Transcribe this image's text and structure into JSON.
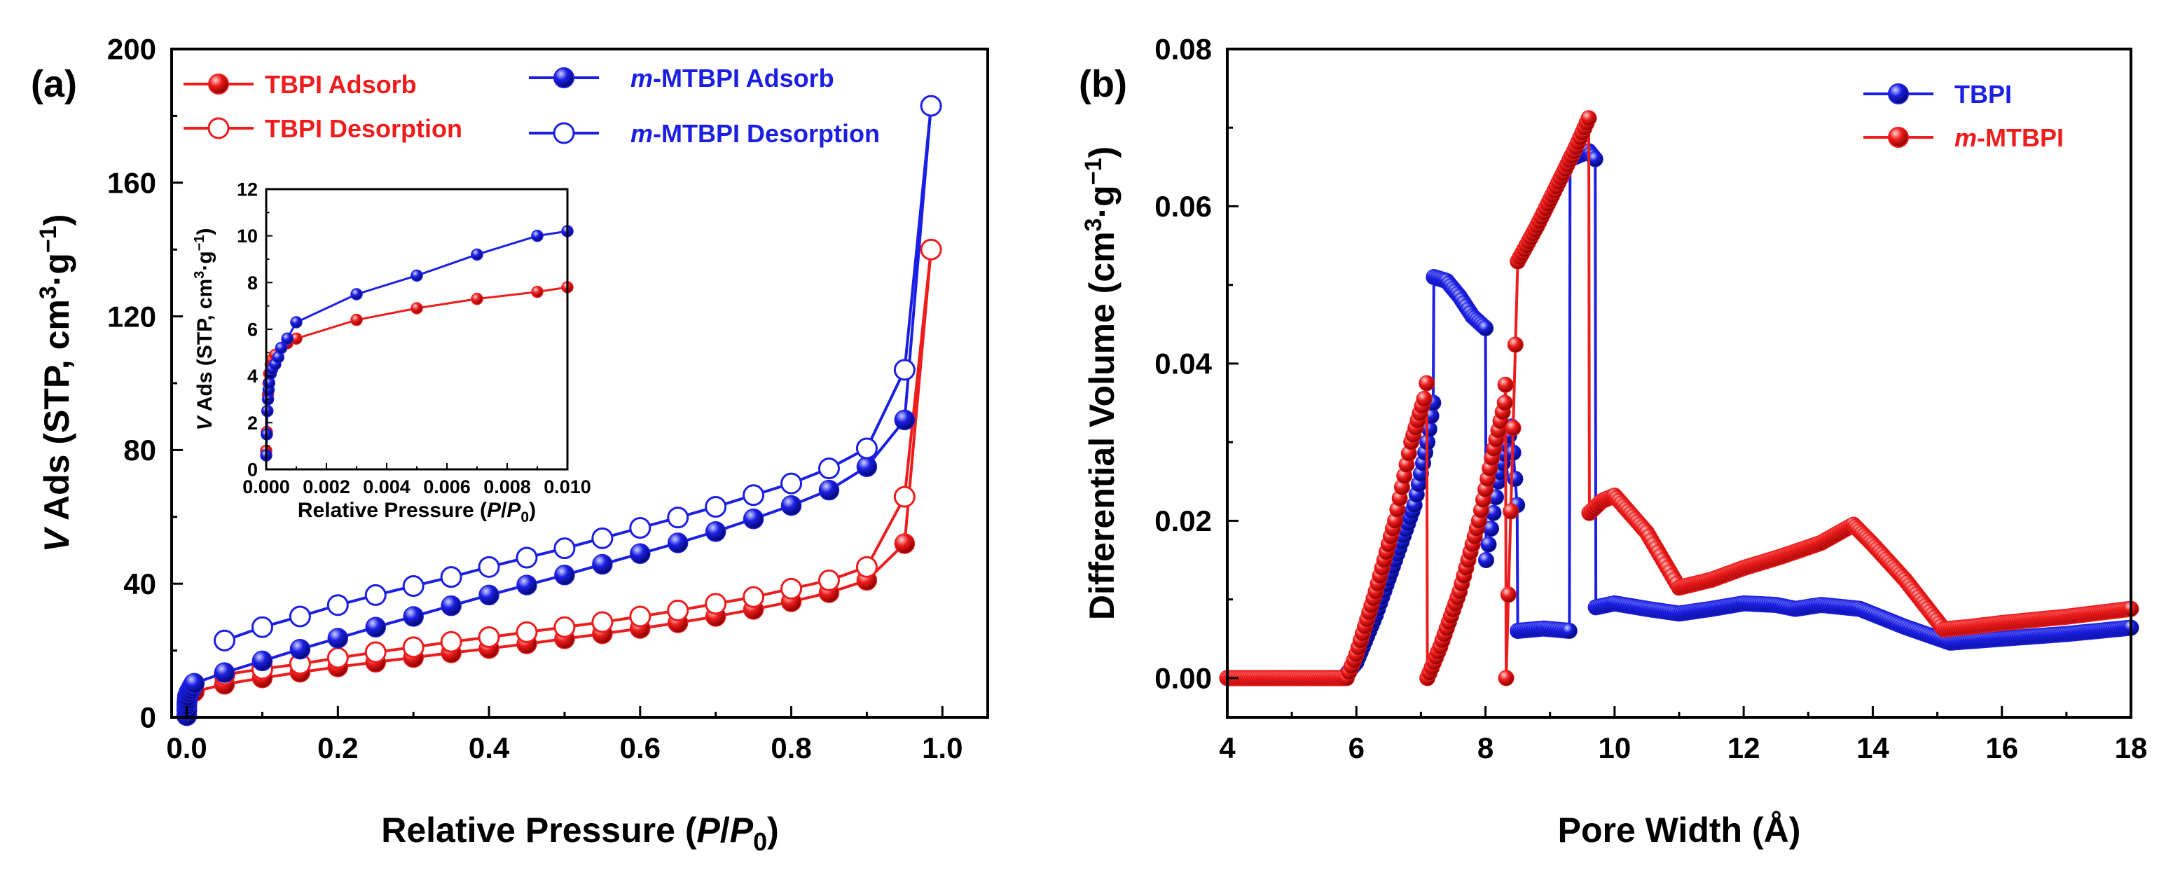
{
  "colors": {
    "red": "#ee1c1c",
    "blue": "#1b1fe4",
    "axis": "#000000"
  },
  "chart_data": [
    {
      "panel": "(a)",
      "type": "line",
      "xlabel": "Relative Pressure (P/P0)",
      "xlabel_parts": {
        "pre": "Relative Pressure (",
        "p": "P",
        "slash": "/",
        "p0": "P",
        "sub": "0",
        "post": ")"
      },
      "ylabel": "V Ads (STP, cm3·g−1)",
      "ylabel_parts": {
        "v": "V",
        "pre": " Ads (STP, cm",
        "sup3": "3",
        "mid": "·g",
        "supm1": "−1",
        "post": ")"
      },
      "xlim": [
        -0.02,
        1.06
      ],
      "ylim": [
        0,
        200
      ],
      "xticks": [
        "0.0",
        "0.2",
        "0.4",
        "0.6",
        "0.8",
        "1.0"
      ],
      "xtick_values": [
        0,
        0.2,
        0.4,
        0.6,
        0.8,
        1.0
      ],
      "yticks": [
        "0",
        "40",
        "80",
        "120",
        "160",
        "200"
      ],
      "ytick_values": [
        0,
        40,
        80,
        120,
        160,
        200
      ],
      "legend": [
        {
          "text": "TBPI Adsorb",
          "prefix": "",
          "color": "red",
          "filled": true
        },
        {
          "text": "TBPI Desorption",
          "prefix": "",
          "color": "red",
          "filled": false
        },
        {
          "text": "-MTBPI Adsorb",
          "prefix": "m",
          "color": "blue",
          "filled": true
        },
        {
          "text": "-MTBPI Desorption",
          "prefix": "m",
          "color": "blue",
          "filled": false
        }
      ],
      "series": [
        {
          "name": "TBPI Adsorb",
          "color": "red",
          "filled": true,
          "x": [
            0.0,
            0.0001,
            0.0002,
            0.0004,
            0.0007,
            0.001,
            0.003,
            0.005,
            0.01,
            0.05,
            0.1,
            0.15,
            0.2,
            0.25,
            0.3,
            0.35,
            0.4,
            0.45,
            0.5,
            0.55,
            0.6,
            0.65,
            0.7,
            0.75,
            0.8,
            0.85,
            0.9,
            0.95,
            0.985
          ],
          "y": [
            0.5,
            2.5,
            4.0,
            4.7,
            5.2,
            5.6,
            6.4,
            6.9,
            7.7,
            9.9,
            11.8,
            13.5,
            15.1,
            16.5,
            17.9,
            19.3,
            20.6,
            22.0,
            23.5,
            25.0,
            26.6,
            28.3,
            30.2,
            32.3,
            34.6,
            37.3,
            41.0,
            52.0,
            140.0
          ]
        },
        {
          "name": "TBPI Desorption",
          "color": "red",
          "filled": false,
          "x": [
            0.985,
            0.95,
            0.9,
            0.85,
            0.8,
            0.75,
            0.7,
            0.65,
            0.6,
            0.55,
            0.5,
            0.45,
            0.4,
            0.35,
            0.3,
            0.25,
            0.2,
            0.15,
            0.1,
            0.05
          ],
          "y": [
            140.0,
            66.0,
            45.0,
            41.0,
            38.5,
            36.0,
            34.0,
            32.0,
            30.2,
            28.5,
            27.0,
            25.5,
            24.0,
            22.6,
            21.0,
            19.5,
            17.8,
            16.0,
            14.5,
            12.8
          ]
        },
        {
          "name": "m-MTBPI Adsorb",
          "color": "blue",
          "filled": true,
          "x": [
            0.0,
            0.0001,
            0.0002,
            0.0004,
            0.0007,
            0.001,
            0.003,
            0.005,
            0.007,
            0.009,
            0.01,
            0.05,
            0.1,
            0.15,
            0.2,
            0.25,
            0.3,
            0.35,
            0.4,
            0.45,
            0.5,
            0.55,
            0.6,
            0.65,
            0.7,
            0.75,
            0.8,
            0.85,
            0.9,
            0.95,
            0.985
          ],
          "y": [
            0.5,
            2.2,
            3.8,
            4.6,
            5.4,
            6.3,
            7.5,
            8.3,
            9.2,
            10.0,
            10.2,
            13.4,
            16.9,
            20.4,
            23.7,
            27.0,
            30.2,
            33.4,
            36.6,
            39.6,
            42.6,
            45.8,
            49.0,
            52.2,
            55.6,
            59.4,
            63.4,
            68.0,
            75.0,
            89.0,
            183.0
          ]
        },
        {
          "name": "m-MTBPI Desorption",
          "color": "blue",
          "filled": false,
          "x": [
            0.985,
            0.95,
            0.9,
            0.85,
            0.8,
            0.75,
            0.7,
            0.65,
            0.6,
            0.55,
            0.5,
            0.45,
            0.4,
            0.35,
            0.3,
            0.25,
            0.2,
            0.15,
            0.1,
            0.05
          ],
          "y": [
            183.0,
            104.0,
            80.5,
            74.5,
            70.0,
            66.5,
            63.0,
            59.8,
            56.7,
            53.6,
            50.6,
            47.8,
            45.0,
            42.0,
            39.3,
            36.6,
            33.6,
            30.2,
            27.0,
            23.0
          ]
        }
      ],
      "inset": {
        "xlabel": "Relative Pressure (P/P0)",
        "xlabel_parts": {
          "pre": "Relative Pressure (",
          "p": "P",
          "slash": "/",
          "p0": "P",
          "sub": "0",
          "post": ")"
        },
        "ylabel_parts": {
          "v": "V",
          "pre": " Ads (STP, cm",
          "sup3": "3",
          "mid": "·g",
          "supm1": "−1",
          "post": ")"
        },
        "xlim": [
          0,
          0.01
        ],
        "ylim": [
          0,
          12
        ],
        "xticks": [
          "0.000",
          "0.002",
          "0.004",
          "0.006",
          "0.008",
          "0.010"
        ],
        "xtick_values": [
          0,
          0.002,
          0.004,
          0.006,
          0.008,
          0.01
        ],
        "yticks": [
          "0",
          "2",
          "4",
          "6",
          "8",
          "10",
          "12"
        ],
        "ytick_values": [
          0,
          2,
          4,
          6,
          8,
          10,
          12
        ],
        "series": [
          {
            "name": "TBPI Adsorb",
            "color": "red",
            "x": [
              0.0,
              2e-05,
              4e-05,
              6e-05,
              8e-05,
              0.0001,
              0.00015,
              0.0002,
              0.0003,
              0.0005,
              0.0007,
              0.001,
              0.003,
              0.005,
              0.007,
              0.009,
              0.01
            ],
            "y": [
              0.8,
              1.6,
              2.5,
              3.2,
              3.7,
              4.1,
              4.5,
              4.7,
              4.9,
              5.2,
              5.4,
              5.6,
              6.4,
              6.9,
              7.3,
              7.6,
              7.8
            ]
          },
          {
            "name": "m-MTBPI Adsorb",
            "color": "blue",
            "x": [
              0.0,
              2e-05,
              4e-05,
              6e-05,
              8e-05,
              0.0001,
              0.00015,
              0.0002,
              0.0003,
              0.0004,
              0.0005,
              0.0007,
              0.001,
              0.003,
              0.005,
              0.007,
              0.009,
              0.01
            ],
            "y": [
              0.6,
              1.5,
              2.5,
              3.0,
              3.4,
              3.7,
              4.1,
              4.3,
              4.5,
              4.8,
              5.2,
              5.6,
              6.3,
              7.5,
              8.3,
              9.2,
              10.0,
              10.2
            ]
          }
        ]
      }
    },
    {
      "panel": "(b)",
      "type": "line",
      "xlabel": "Pore Width (Å)",
      "ylabel": "Differential Volume (cm3·g−1)",
      "ylabel_parts": {
        "pre": "Differential Volume (cm",
        "sup3": "3",
        "mid": "·g",
        "supm1": "−1",
        "post": ")"
      },
      "xlim": [
        4,
        18
      ],
      "ylim": [
        -0.005,
        0.08
      ],
      "xticks": [
        "4",
        "6",
        "8",
        "10",
        "12",
        "14",
        "16",
        "18"
      ],
      "xtick_values": [
        4,
        6,
        8,
        10,
        12,
        14,
        16,
        18
      ],
      "yticks": [
        "0.00",
        "0.02",
        "0.04",
        "0.06",
        "0.08"
      ],
      "ytick_values": [
        0,
        0.02,
        0.04,
        0.06,
        0.08
      ],
      "legend": [
        {
          "text": "TBPI",
          "prefix": "",
          "color": "blue",
          "filled": true
        },
        {
          "text": "-MTBPI",
          "prefix": "m",
          "color": "red",
          "filled": true
        }
      ],
      "series": [
        {
          "name": "TBPI",
          "color": "blue",
          "x": [
            4.0,
            5.8,
            6.0,
            6.3,
            6.6,
            6.9,
            7.1,
            7.19,
            7.2,
            7.4,
            7.6,
            7.8,
            8.0,
            8.01,
            8.2,
            8.4,
            8.49,
            8.5,
            8.9,
            9.3,
            9.31,
            9.6,
            9.7,
            9.71,
            10.0,
            10.5,
            11.0,
            11.5,
            12.0,
            12.5,
            12.8,
            13.2,
            13.8,
            14.5,
            15.2,
            16.0,
            17.0,
            18.0
          ],
          "y": [
            0.0,
            0.0,
            0.002,
            0.008,
            0.015,
            0.022,
            0.03,
            0.035,
            0.051,
            0.0505,
            0.0485,
            0.046,
            0.0445,
            0.015,
            0.025,
            0.032,
            0.022,
            0.006,
            0.0063,
            0.006,
            0.066,
            0.067,
            0.066,
            0.009,
            0.0095,
            0.0088,
            0.0082,
            0.0088,
            0.0095,
            0.0093,
            0.0088,
            0.0093,
            0.0088,
            0.0065,
            0.0045,
            0.005,
            0.0056,
            0.0064
          ]
        },
        {
          "name": "m-MTBPI",
          "color": "red",
          "x": [
            4.0,
            5.85,
            6.0,
            6.3,
            6.6,
            6.85,
            7.05,
            7.09,
            7.1,
            7.3,
            7.6,
            7.9,
            8.1,
            8.3,
            8.31,
            8.32,
            8.5,
            8.8,
            9.1,
            9.4,
            9.6,
            9.61,
            9.8,
            10.0,
            10.5,
            11.0,
            11.5,
            12.0,
            12.6,
            13.2,
            13.7,
            14.0,
            14.5,
            15.1,
            15.5,
            16.0,
            17.0,
            18.0
          ],
          "y": [
            0.0,
            0.0,
            0.003,
            0.011,
            0.02,
            0.03,
            0.0355,
            0.0375,
            0.0,
            0.004,
            0.011,
            0.02,
            0.028,
            0.035,
            0.0373,
            0.0,
            0.053,
            0.0575,
            0.0625,
            0.0675,
            0.0712,
            0.021,
            0.0225,
            0.0232,
            0.0185,
            0.0115,
            0.0125,
            0.014,
            0.0155,
            0.0172,
            0.0195,
            0.017,
            0.0125,
            0.0062,
            0.0065,
            0.007,
            0.0078,
            0.0088
          ]
        }
      ]
    }
  ]
}
